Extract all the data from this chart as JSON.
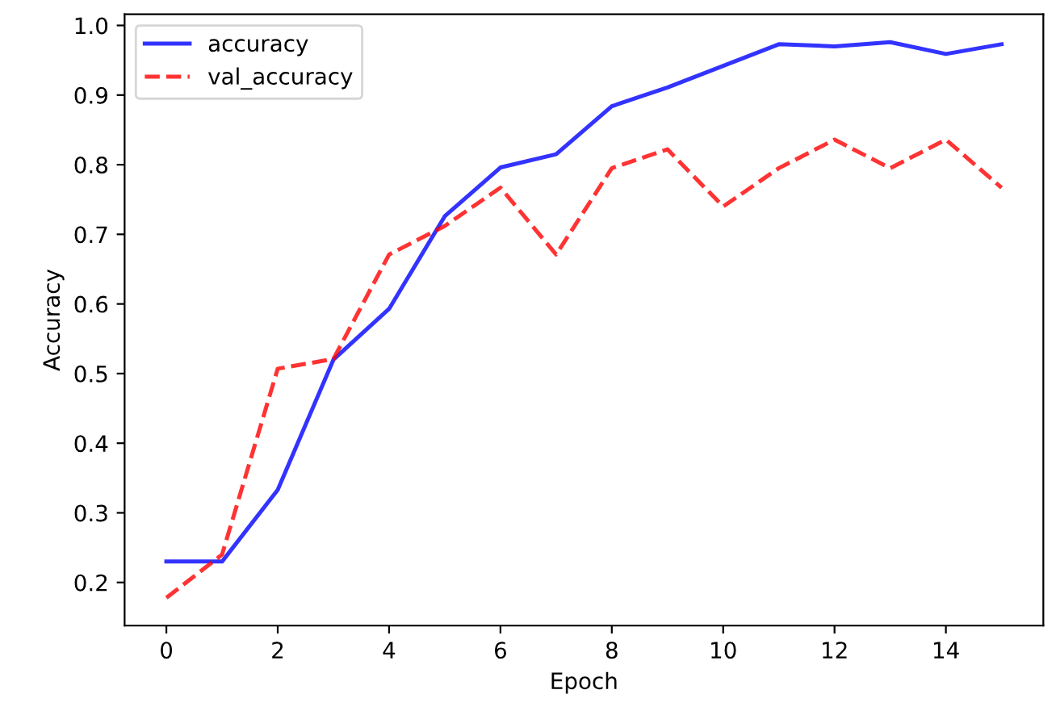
{
  "chart_data": {
    "type": "line",
    "xlabel": "Epoch",
    "ylabel": "Accuracy",
    "x": [
      0,
      1,
      2,
      3,
      4,
      5,
      6,
      7,
      8,
      9,
      10,
      11,
      12,
      13,
      14,
      15
    ],
    "series": [
      {
        "name": "accuracy",
        "color": "#0000ff",
        "line_style": "solid",
        "values": [
          0.23,
          0.23,
          0.333,
          0.52,
          0.593,
          0.726,
          0.796,
          0.815,
          0.884,
          0.911,
          0.942,
          0.973,
          0.97,
          0.976,
          0.959,
          0.973
        ]
      },
      {
        "name": "val_accuracy",
        "color": "#ff0000",
        "line_style": "dashed",
        "values": [
          0.178,
          0.24,
          0.507,
          0.521,
          0.671,
          0.712,
          0.767,
          0.671,
          0.795,
          0.822,
          0.74,
          0.795,
          0.836,
          0.795,
          0.836,
          0.767
        ]
      }
    ],
    "xlim": [
      -0.75,
      15.75
    ],
    "xticks": [
      0,
      2,
      4,
      6,
      8,
      10,
      12,
      14
    ],
    "ylim": [
      0.138,
      1.016
    ],
    "yticks": [
      0.2,
      0.3,
      0.4,
      0.5,
      0.6,
      0.7,
      0.8,
      0.9,
      {
        "value": 1.0,
        "label": "1.0"
      }
    ],
    "grid": false,
    "legend": "top left"
  }
}
